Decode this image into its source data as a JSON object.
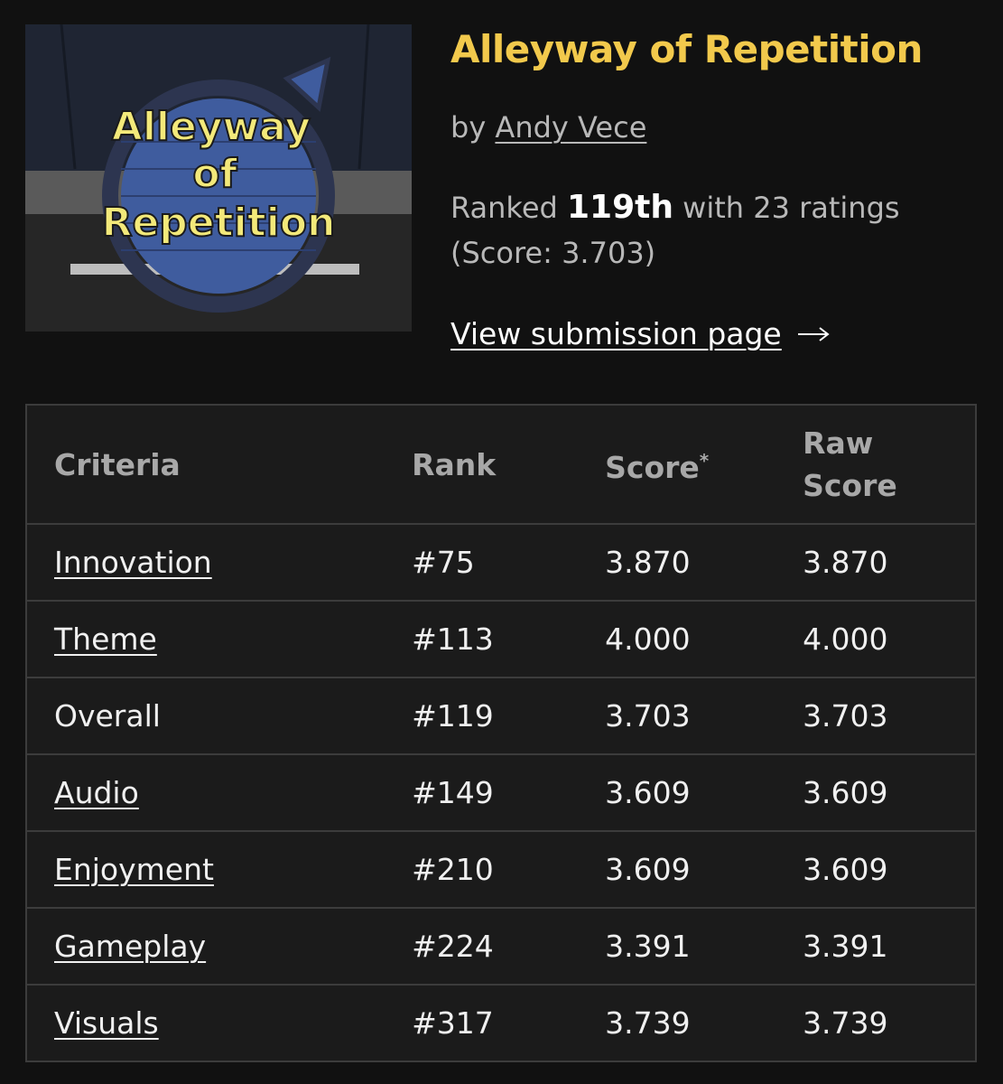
{
  "header": {
    "title": "Alleyway of Repetition",
    "author_prefix": "by",
    "author": "Andy Vece",
    "ranked_prefix": "Ranked",
    "rank": "119th",
    "ratings": "with 23 ratings",
    "score": "(Score: 3.703)",
    "link": "View submission page"
  },
  "thumbnail": {
    "lines": [
      "Alleyway",
      "of",
      "Repetition"
    ]
  },
  "table": {
    "columns": [
      "Criteria",
      "Rank",
      "Score",
      "Raw Score"
    ],
    "score_marker": "*",
    "rows": [
      {
        "cells": [
          "Innovation",
          "#75",
          "3.870",
          "3.870"
        ],
        "link": true
      },
      {
        "cells": [
          "Theme",
          "#113",
          "4.000",
          "4.000"
        ],
        "link": true
      },
      {
        "cells": [
          "Overall",
          "#119",
          "3.703",
          "3.703"
        ],
        "link": false
      },
      {
        "cells": [
          "Audio",
          "#149",
          "3.609",
          "3.609"
        ],
        "link": true
      },
      {
        "cells": [
          "Enjoyment",
          "#210",
          "3.609",
          "3.609"
        ],
        "link": true
      },
      {
        "cells": [
          "Gameplay",
          "#224",
          "3.391",
          "3.391"
        ],
        "link": true
      },
      {
        "cells": [
          "Visuals",
          "#317",
          "3.739",
          "3.739"
        ],
        "link": true
      }
    ]
  }
}
